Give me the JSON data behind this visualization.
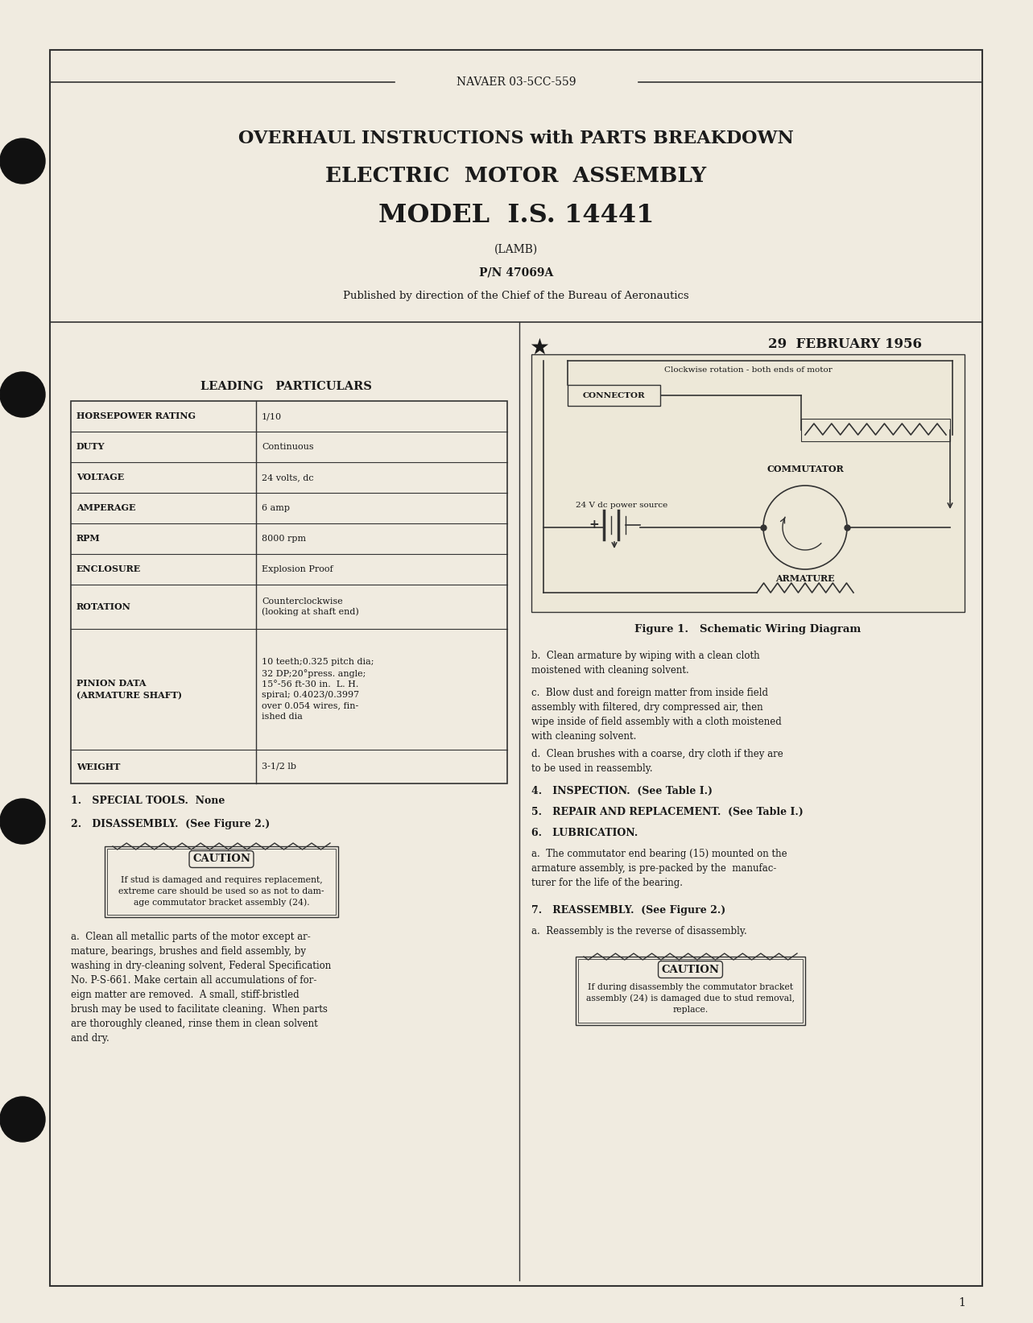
{
  "bg_color": "#f0ebe0",
  "text_color": "#1a1a1a",
  "header_text": "NAVAER 03-5CC-559",
  "title_line1": "OVERHAUL INSTRUCTIONS with PARTS BREAKDOWN",
  "title_line2": "ELECTRIC  MOTOR  ASSEMBLY",
  "title_line3": "MODEL  I.S. 14441",
  "subtitle1": "(LAMB)",
  "subtitle2": "P/N 47069A",
  "subtitle3": "Published by direction of the Chief of the Bureau of Aeronautics",
  "date_text": "29  FEBRUARY 1956",
  "leading_particulars_title": "LEADING   PARTICULARS",
  "table_rows": [
    [
      "HORSEPOWER RATING",
      "1/10"
    ],
    [
      "DUTY",
      "Continuous"
    ],
    [
      "VOLTAGE",
      "24 volts, dc"
    ],
    [
      "AMPERAGE",
      "6 amp"
    ],
    [
      "RPM",
      "8000 rpm"
    ],
    [
      "ENCLOSURE",
      "Explosion Proof"
    ],
    [
      "ROTATION",
      "Counterclockwise\n(looking at shaft end)"
    ],
    [
      "PINION DATA\n(ARMATURE SHAFT)",
      "10 teeth;0.325 pitch dia;\n32 DP;20°press. angle;\n15°-56 ft-30 in.  L. H.\nspiral; 0.4023/0.3997\nover 0.054 wires, fin-\nished dia"
    ],
    [
      "WEIGHT",
      "3-1/2 lb"
    ]
  ],
  "section1_title": "1.   SPECIAL TOOLS.  None",
  "section2_title": "2.   DISASSEMBLY.  (See Figure 2.)",
  "caution_text": "CAUTION",
  "caution_body": "If stud is damaged and requires replacement,\nextreme care should be used so as not to dam-\nage commutator bracket assembly (24).",
  "para_a": "a.  Clean all metallic parts of the motor except ar-\nmature, bearings, brushes and field assembly, by\nwashing in dry-cleaning solvent, Federal Specification\nNo. P-S-661. Make certain all accumulations of for-\neign matter are removed.  A small, stiff-bristled\nbrush may be used to facilitate cleaning.  When parts\nare thoroughly cleaned, rinse them in clean solvent\nand dry.",
  "right_col_b": "b.  Clean armature by wiping with a clean cloth\nmoistened with cleaning solvent.",
  "right_col_c": "c.  Blow dust and foreign matter from inside field\nassembly with filtered, dry compressed air, then\nwipe inside of field assembly with a cloth moistened\nwith cleaning solvent.",
  "right_col_d": "d.  Clean brushes with a coarse, dry cloth if they are\nto be used in reassembly.",
  "section4": "4.   INSPECTION.  (See Table I.)",
  "section5": "5.   REPAIR AND REPLACEMENT.  (See Table I.)",
  "section6": "6.   LUBRICATION.",
  "para_6a": "a.  The commutator end bearing (15) mounted on the\narmature assembly, is pre-packed by the  manufac-\nturer for the life of the bearing.",
  "section7": "7.   REASSEMBLY.  (See Figure 2.)",
  "para_7a": "a.  Reassembly is the reverse of disassembly.",
  "caution2_body": "If during disassembly the commutator bracket\nassembly (24) is damaged due to stud removal,\nreplace.",
  "fig_caption": "Figure 1.   Schematic Wiring Diagram",
  "fig_label_connector": "CONNECTOR",
  "fig_label_commutator": "COMMUTATOR",
  "fig_label_armature": "ARMATURE",
  "fig_label_power": "24 V dc power source",
  "fig_label_rotation": "Clockwise rotation - both ends of motor",
  "page_number": "1"
}
